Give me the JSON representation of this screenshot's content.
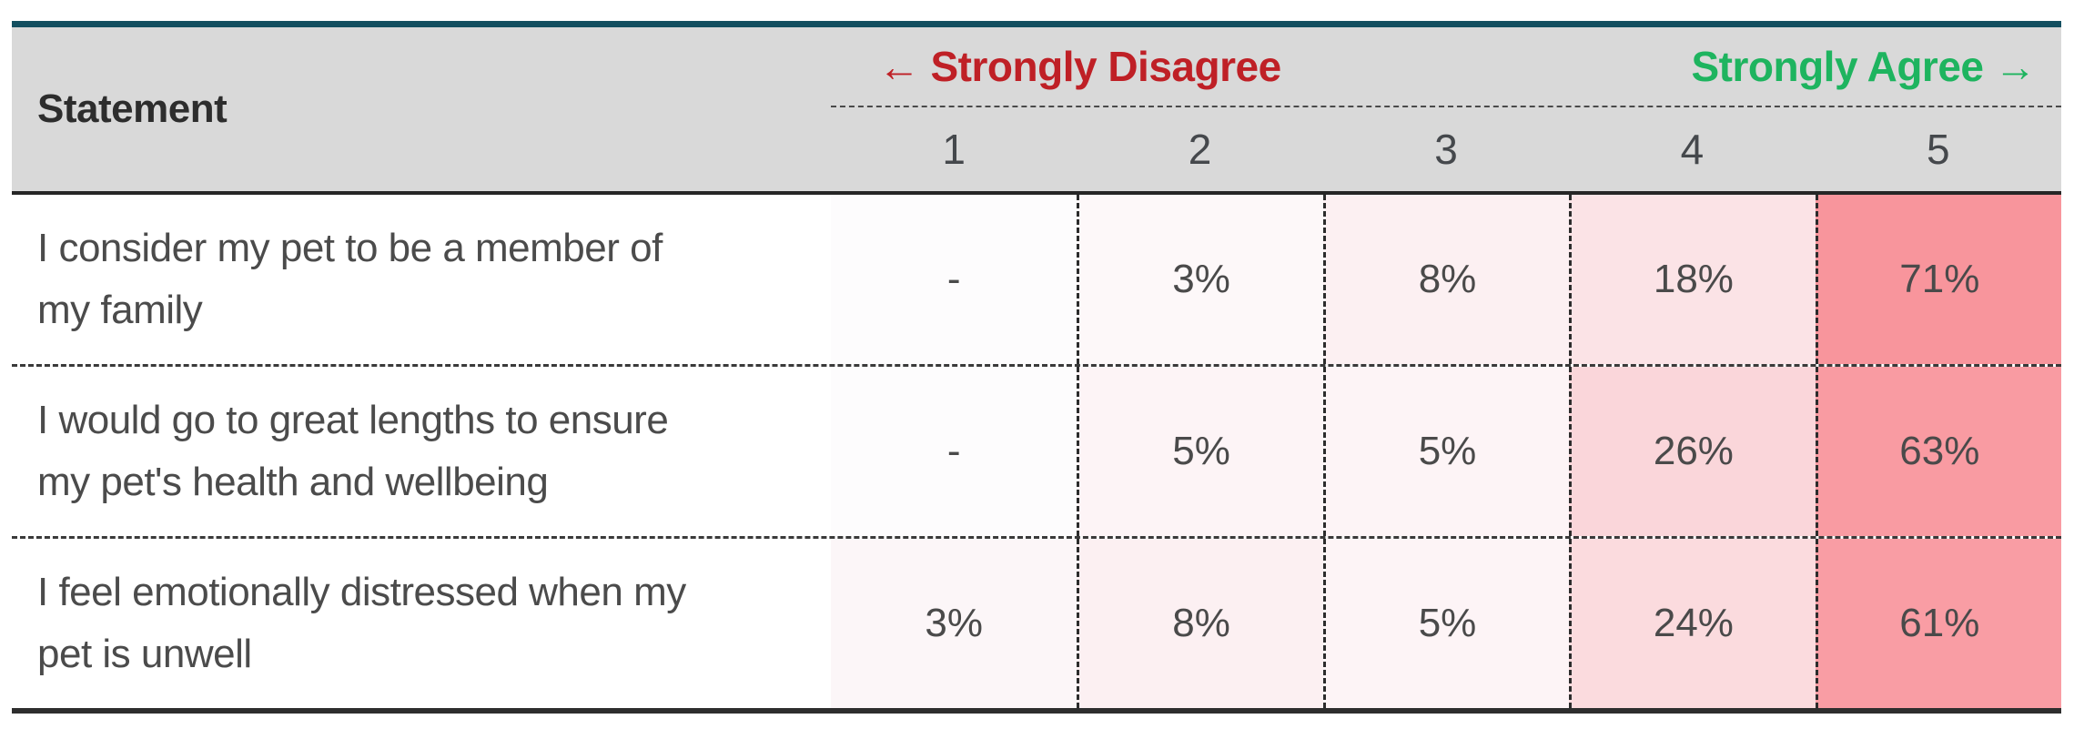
{
  "table": {
    "top_bar_color": "#134f60",
    "header": {
      "background": "#d9d9d9",
      "statement_label": "Statement",
      "disagree": {
        "arrow": "←",
        "label": "Strongly Disagree",
        "color": "#bf2026"
      },
      "agree": {
        "label": "Strongly Agree",
        "arrow": "→",
        "color": "#1eb45f"
      },
      "scale_numbers": [
        "1",
        "2",
        "3",
        "4",
        "5"
      ]
    },
    "rows": [
      {
        "statement": "I consider my pet to be a member of my family",
        "lines": [
          "I consider my pet to be a member of",
          "my family"
        ],
        "cells": [
          {
            "text": "-",
            "color": "#fdfcfd"
          },
          {
            "text": "3%",
            "color": "#fdf8f9"
          },
          {
            "text": "8%",
            "color": "#fcf0f2"
          },
          {
            "text": "18%",
            "color": "#fbe3e6"
          },
          {
            "text": "71%",
            "color": "#f8959c"
          }
        ]
      },
      {
        "statement": "I would go to great lengths to ensure my pet's health and wellbeing",
        "lines": [
          "I would go to great lengths to ensure",
          "my pet's health and wellbeing"
        ],
        "cells": [
          {
            "text": "-",
            "color": "#fdfcfd"
          },
          {
            "text": "5%",
            "color": "#fdf4f6"
          },
          {
            "text": "5%",
            "color": "#fdf4f6"
          },
          {
            "text": "26%",
            "color": "#fad6da"
          },
          {
            "text": "63%",
            "color": "#f99ba2"
          }
        ]
      },
      {
        "statement": "I feel emotionally distressed when my pet is unwell",
        "lines": [
          "I feel emotionally distressed when my",
          "pet is unwell"
        ],
        "cells": [
          {
            "text": "3%",
            "color": "#fcf6f8"
          },
          {
            "text": "8%",
            "color": "#fcf0f2"
          },
          {
            "text": "5%",
            "color": "#fdf4f6"
          },
          {
            "text": "24%",
            "color": "#fbdbde"
          },
          {
            "text": "61%",
            "color": "#f99da4"
          }
        ]
      }
    ]
  },
  "chart_data": {
    "type": "heatmap",
    "title": "",
    "columns": [
      "1",
      "2",
      "3",
      "4",
      "5"
    ],
    "scale_low_label": "Strongly Disagree",
    "scale_high_label": "Strongly Agree",
    "row_header": "Statement",
    "rows": [
      {
        "statement": "I consider my pet to be a member of my family",
        "values_pct": [
          null,
          3,
          8,
          18,
          71
        ],
        "display": [
          "-",
          "3%",
          "8%",
          "18%",
          "71%"
        ]
      },
      {
        "statement": "I would go to great lengths to ensure my pet's health and wellbeing",
        "values_pct": [
          null,
          5,
          5,
          26,
          63
        ],
        "display": [
          "-",
          "5%",
          "5%",
          "26%",
          "63%"
        ]
      },
      {
        "statement": "I feel emotionally distressed when my pet is unwell",
        "values_pct": [
          3,
          8,
          5,
          24,
          61
        ],
        "display": [
          "3%",
          "8%",
          "5%",
          "24%",
          "61%"
        ]
      }
    ],
    "heat_color_max": "#f8959c",
    "heat_color_min": "#ffffff",
    "legend_position": "none",
    "grid": "dashed"
  }
}
